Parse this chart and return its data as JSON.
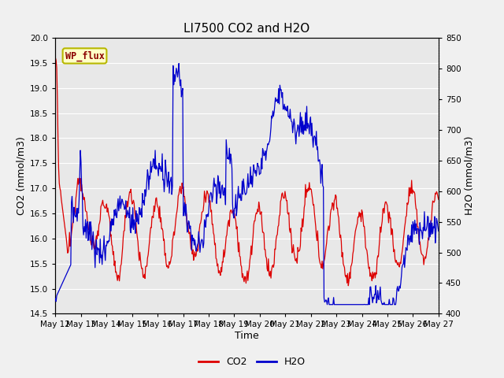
{
  "title": "LI7500 CO2 and H2O",
  "xlabel": "Time",
  "ylabel_left": "CO2 (mmol/m3)",
  "ylabel_right": "H2O (mmol/m3)",
  "annotation": "WP_flux",
  "co2_ylim": [
    14.5,
    20.0
  ],
  "h2o_ylim": [
    400,
    850
  ],
  "co2_yticks": [
    14.5,
    15.0,
    15.5,
    16.0,
    16.5,
    17.0,
    17.5,
    18.0,
    18.5,
    19.0,
    19.5,
    20.0
  ],
  "h2o_yticks": [
    400,
    450,
    500,
    550,
    600,
    650,
    700,
    750,
    800,
    850
  ],
  "xtick_labels": [
    "May 12",
    "May 13",
    "May 14",
    "May 15",
    "May 16",
    "May 17",
    "May 18",
    "May 19",
    "May 20",
    "May 21",
    "May 22",
    "May 23",
    "May 24",
    "May 25",
    "May 26",
    "May 27"
  ],
  "legend_co2_label": "CO2",
  "legend_h2o_label": "H2O",
  "co2_color": "#dd0000",
  "h2o_color": "#0000cc",
  "background_color": "#f0f0f0",
  "plot_bg_color": "#e8e8e8",
  "grid_color": "#ffffff",
  "title_fontsize": 11,
  "axis_label_fontsize": 9,
  "tick_fontsize": 7.5,
  "annotation_fontsize": 8.5
}
